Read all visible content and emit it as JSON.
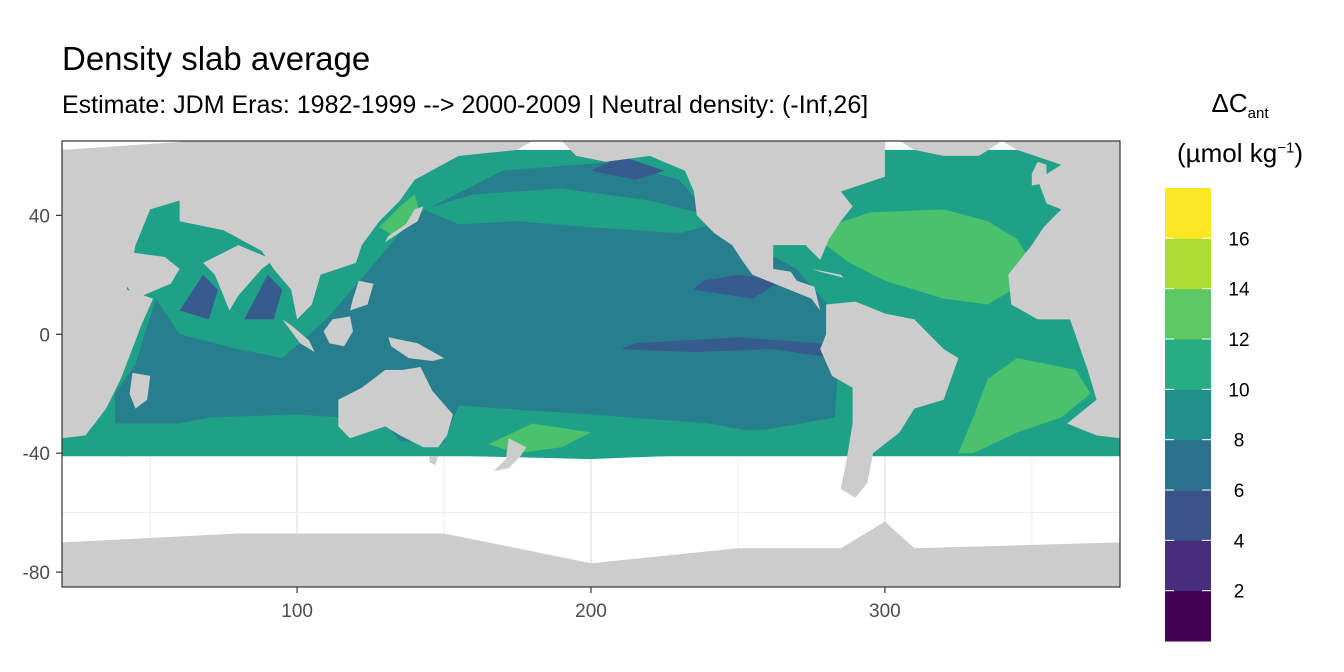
{
  "title": "Density slab average",
  "subtitle": "Estimate: JDM Eras: 1982-1999 --> 2000-2009 | Neutral density: (-Inf,26]",
  "legend": {
    "title_main": "ΔC",
    "title_sub": "ant",
    "unit_prefix": "(µmol kg",
    "unit_exp": "−1",
    "unit_suffix": ")",
    "breaks": [
      "2",
      "4",
      "6",
      "8",
      "10",
      "12",
      "14",
      "16"
    ],
    "colors": [
      "#440154",
      "#46337E",
      "#365C8D",
      "#277F8E",
      "#1FA187",
      "#4AC16D",
      "#9FDA3A",
      "#FDE725"
    ]
  },
  "colors": {
    "land": "#cccccc",
    "panel_bg": "#ffffff",
    "grid": "#ebebeb",
    "panel_border": "#333333"
  },
  "chart_data": {
    "type": "heatmap",
    "xlim": [
      20,
      380
    ],
    "ylim": [
      -85,
      65
    ],
    "x_ticks": [
      100,
      200,
      300
    ],
    "y_ticks": [
      40,
      0,
      -40,
      -80
    ],
    "x_tick_labels": [
      "100",
      "200",
      "300"
    ],
    "y_tick_labels": [
      "40",
      "0",
      "-40",
      "-80"
    ],
    "xlabel": "",
    "ylabel": "",
    "grid": true,
    "legend_position": "right",
    "value_bins": [
      [
        0,
        2
      ],
      [
        2,
        4
      ],
      [
        4,
        6
      ],
      [
        6,
        8
      ],
      [
        8,
        10
      ],
      [
        10,
        12
      ],
      [
        12,
        14
      ],
      [
        14,
        16
      ],
      [
        16,
        18
      ]
    ]
  }
}
